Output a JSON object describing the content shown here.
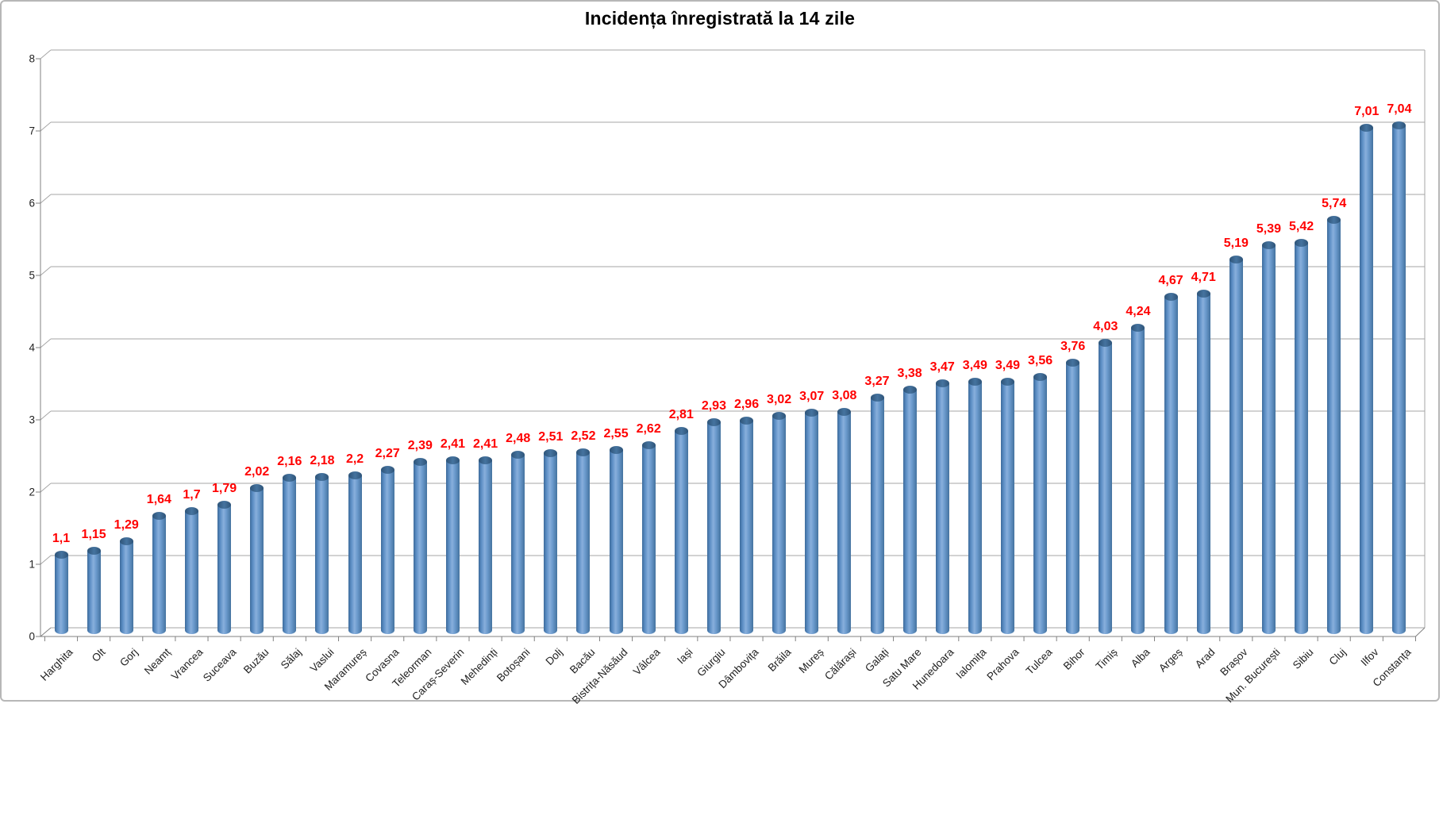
{
  "chart_data": {
    "type": "bar",
    "style": "3d-cylinder-column",
    "title": "Incidența înregistrată la 14 zile",
    "categories": [
      "Harghita",
      "Olt",
      "Gorj",
      "Neamț",
      "Vrancea",
      "Suceava",
      "Buzău",
      "Sălaj",
      "Vaslui",
      "Maramureș",
      "Covasna",
      "Teleorman",
      "Caraș-Severin",
      "Mehedinți",
      "Botoșani",
      "Dolj",
      "Bacău",
      "Bistrița-Năsăud",
      "Vâlcea",
      "Iași",
      "Giurgiu",
      "Dâmbovița",
      "Brăila",
      "Mureș",
      "Călărași",
      "Galați",
      "Satu Mare",
      "Hunedoara",
      "Ialomița",
      "Prahova",
      "Tulcea",
      "Bihor",
      "Timiș",
      "Alba",
      "Argeș",
      "Arad",
      "Brașov",
      "Mun. București",
      "Sibiu",
      "Cluj",
      "Ilfov",
      "Constanța"
    ],
    "values": [
      1.1,
      1.15,
      1.29,
      1.64,
      1.7,
      1.79,
      2.02,
      2.16,
      2.18,
      2.2,
      2.27,
      2.39,
      2.41,
      2.41,
      2.48,
      2.51,
      2.52,
      2.55,
      2.62,
      2.81,
      2.93,
      2.96,
      3.02,
      3.07,
      3.08,
      3.27,
      3.38,
      3.47,
      3.49,
      3.49,
      3.56,
      3.76,
      4.03,
      4.24,
      4.67,
      4.71,
      5.19,
      5.39,
      5.42,
      5.74,
      7.01,
      7.04
    ],
    "value_labels": [
      "1,1",
      "1,15",
      "1,29",
      "1,64",
      "1,7",
      "1,79",
      "2,02",
      "2,16",
      "2,18",
      "2,2",
      "2,27",
      "2,39",
      "2,41",
      "2,41",
      "2,48",
      "2,51",
      "2,52",
      "2,55",
      "2,62",
      "2,81",
      "2,93",
      "2,96",
      "3,02",
      "3,07",
      "3,08",
      "3,27",
      "3,38",
      "3,47",
      "3,49",
      "3,49",
      "3,56",
      "3,76",
      "4,03",
      "4,24",
      "4,67",
      "4,71",
      "5,19",
      "5,39",
      "5,42",
      "5,74",
      "7,01",
      "7,04"
    ],
    "xlabel": "",
    "ylabel": "",
    "ylim": [
      0,
      8
    ],
    "yticks": [
      "0",
      "1",
      "2",
      "3",
      "4",
      "5",
      "6",
      "7",
      "8"
    ],
    "grid": true,
    "legend": "none",
    "colors": {
      "bar_fill": "#4f81bd",
      "bar_edge": "#41719c",
      "bar_top": "#35608a",
      "data_label": "#ff0000",
      "gridline": "#a6a6a6",
      "axis": "#808080",
      "title": "#000000",
      "background": "#ffffff"
    }
  }
}
